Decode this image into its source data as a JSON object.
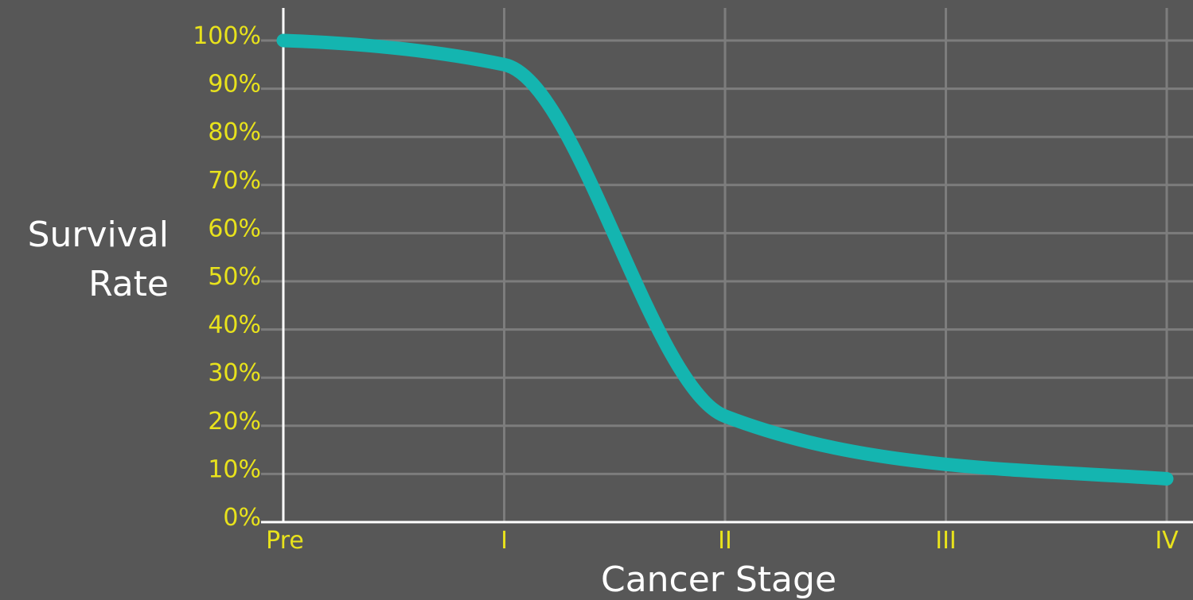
{
  "colors": {
    "background": "#575757",
    "grid": "#7d7d7d",
    "axis": "#ffffff",
    "tick_text": "#e8e21c",
    "label_text": "#ffffff",
    "line": "#14b5b0"
  },
  "chart_data": {
    "type": "line",
    "xlabel": "Cancer Stage",
    "ylabel_lines": [
      "Survival",
      "Rate"
    ],
    "x_ticks": [
      "Pre",
      "I",
      "II",
      "III",
      "IV"
    ],
    "y_ticks": [
      "0%",
      "10%",
      "20%",
      "30%",
      "40%",
      "50%",
      "60%",
      "70%",
      "80%",
      "90%",
      "100%"
    ],
    "ylim": [
      0,
      100
    ],
    "grid": true,
    "series": [
      {
        "x": [
          "Pre",
          "I",
          "II",
          "III",
          "IV"
        ],
        "values": [
          100,
          95,
          22,
          12,
          9
        ]
      }
    ]
  }
}
